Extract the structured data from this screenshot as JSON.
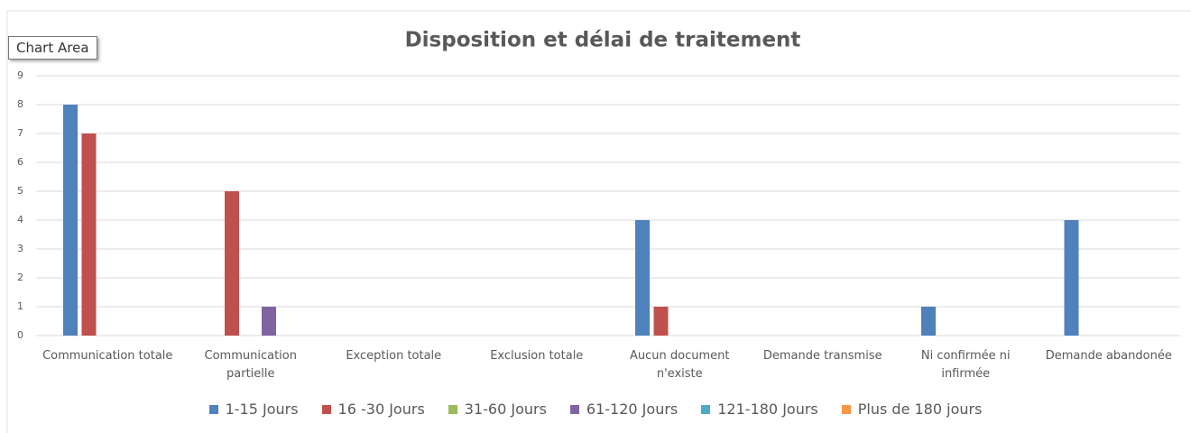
{
  "tooltip": "Chart Area",
  "chart_data": {
    "type": "bar",
    "title": "Disposition et délai de traitement",
    "categories": [
      "Communication totale",
      "Communication partielle",
      "Exception totale",
      "Exclusion totale",
      "Aucun document n'existe",
      "Demande transmise",
      "Ni confirmée ni infirmée",
      "Demande abandonée"
    ],
    "series": [
      {
        "name": "1-15 Jours",
        "color": "#4f81bd",
        "values": [
          8,
          0,
          0,
          0,
          4,
          0,
          1,
          4
        ]
      },
      {
        "name": "16 -30 Jours",
        "color": "#c0504d",
        "values": [
          7,
          5,
          0,
          0,
          1,
          0,
          0,
          0
        ]
      },
      {
        "name": "31-60 Jours",
        "color": "#9bbb59",
        "values": [
          0,
          0,
          0,
          0,
          0,
          0,
          0,
          0
        ]
      },
      {
        "name": "61-120 Jours",
        "color": "#8064a2",
        "values": [
          0,
          1,
          0,
          0,
          0,
          0,
          0,
          0
        ]
      },
      {
        "name": "121-180 Jours",
        "color": "#4bacc6",
        "values": [
          0,
          0,
          0,
          0,
          0,
          0,
          0,
          0
        ]
      },
      {
        "name": "Plus de 180 jours",
        "color": "#f79646",
        "values": [
          0,
          0,
          0,
          0,
          0,
          0,
          0,
          0
        ]
      }
    ],
    "ylim": [
      0,
      9
    ],
    "yticks": [
      0,
      1,
      2,
      3,
      4,
      5,
      6,
      7,
      8,
      9
    ],
    "grid": true,
    "legend": "bottom"
  }
}
